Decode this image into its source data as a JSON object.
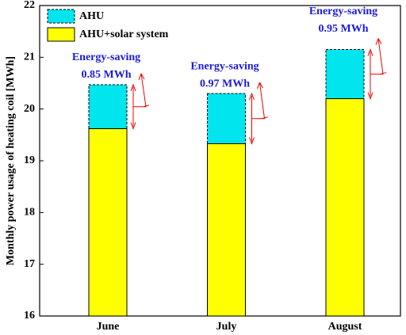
{
  "chart_data": {
    "type": "bar",
    "ylabel": "Monthly power usage of heating coil [MWh]",
    "categories": [
      "June",
      "July",
      "August"
    ],
    "series": [
      {
        "name": "AHU",
        "color": "#00e5ee",
        "values": [
          20.47,
          20.3,
          21.15
        ]
      },
      {
        "name": "AHU+solar system",
        "color": "#ffff00",
        "values": [
          19.62,
          19.33,
          20.2
        ]
      }
    ],
    "ylim": [
      16,
      22
    ],
    "yticks": [
      16,
      17,
      18,
      19,
      20,
      21,
      22
    ],
    "annotations": [
      {
        "text": "Energy-saving",
        "amount": "0.85 MWh"
      },
      {
        "text": "Energy-saving",
        "amount": "0.97 MWh"
      },
      {
        "text": "Energy-saving",
        "amount": "0.95 MWh"
      }
    ]
  }
}
